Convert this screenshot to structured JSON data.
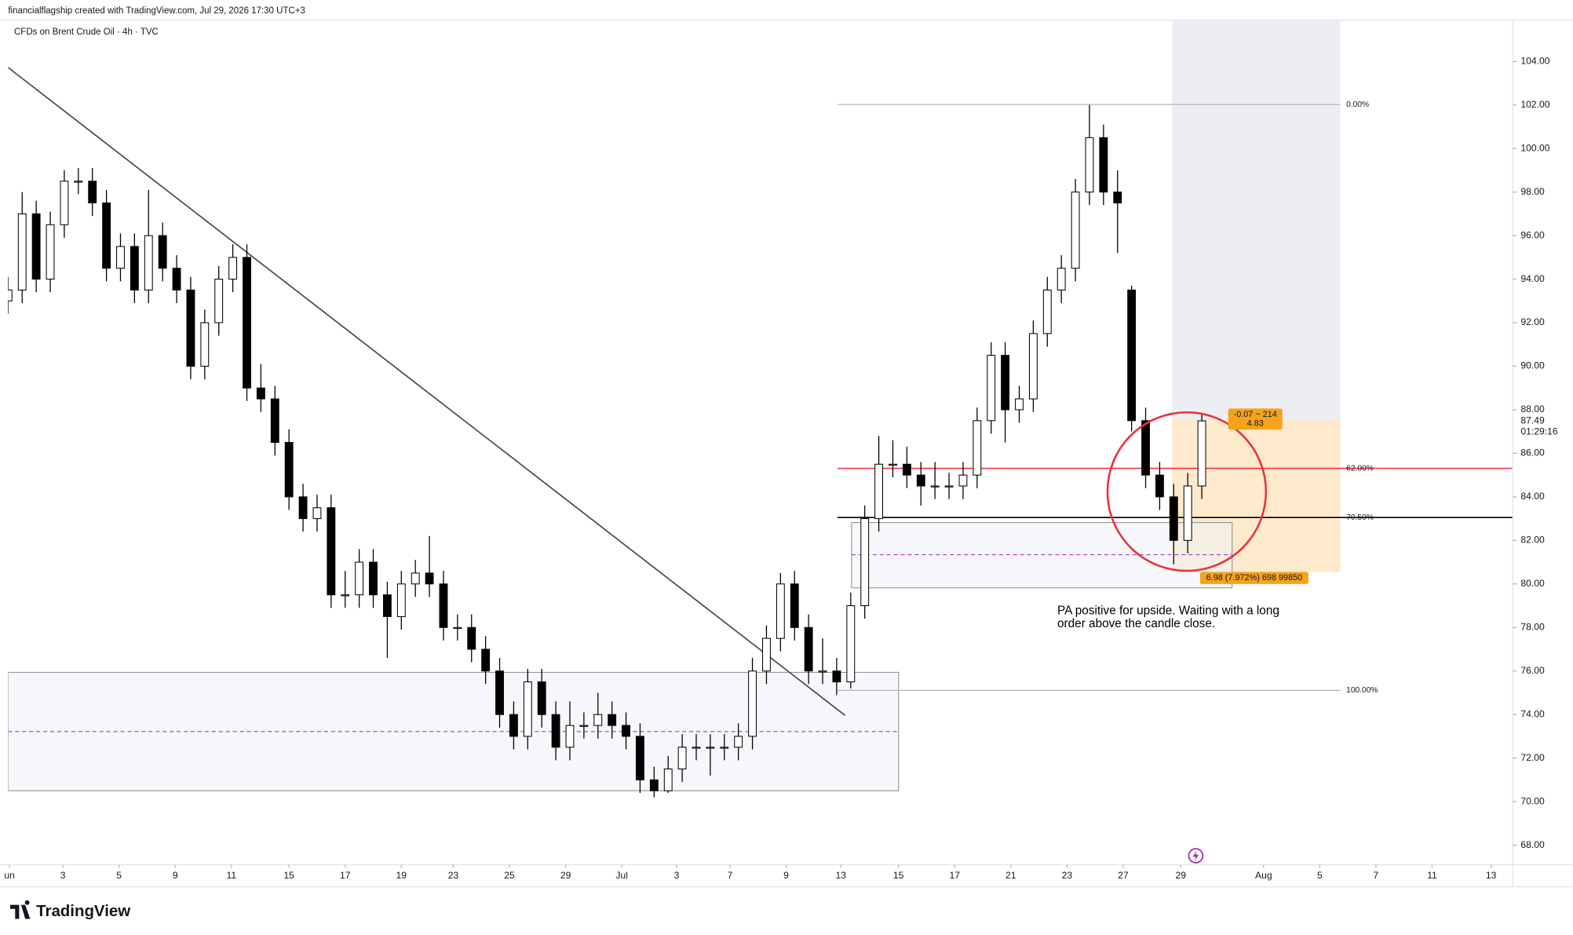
{
  "header": {
    "attribution": "financialflagship created with TradingView.com, Jul 29, 2026 17:30 UTC+3",
    "symbol": "CFDs on Brent Crude Oil · 4h · TVC",
    "brand": "TradingView"
  },
  "chart_data": {
    "type": "candlestick",
    "up_color": "#ffffff",
    "down_color": "#000000",
    "wick_color": "#000000",
    "candles": [
      [
        93,
        94.1,
        92.4,
        93.5
      ],
      [
        93.5,
        98,
        92.9,
        97
      ],
      [
        97,
        97.6,
        93.4,
        94
      ],
      [
        94,
        97.1,
        93.4,
        96.5
      ],
      [
        96.5,
        99,
        95.9,
        98.5
      ],
      [
        98.5,
        99.1,
        97.9,
        98.5
      ],
      [
        98.5,
        99.1,
        96.9,
        97.5
      ],
      [
        97.5,
        98.1,
        93.9,
        94.5
      ],
      [
        94.5,
        96.1,
        93.9,
        95.5
      ],
      [
        95.5,
        96.1,
        92.9,
        93.5
      ],
      [
        93.5,
        98.1,
        92.9,
        96
      ],
      [
        96,
        96.6,
        93.9,
        94.5
      ],
      [
        94.5,
        95.1,
        92.9,
        93.5
      ],
      [
        93.5,
        94.1,
        89.4,
        90
      ],
      [
        90,
        92.6,
        89.4,
        92
      ],
      [
        92,
        94.6,
        91.4,
        94
      ],
      [
        94,
        95.6,
        93.4,
        95
      ],
      [
        95,
        95.6,
        88.4,
        89
      ],
      [
        89,
        90.1,
        87.9,
        88.5
      ],
      [
        88.5,
        89.1,
        85.9,
        86.5
      ],
      [
        86.5,
        87.1,
        83.4,
        84
      ],
      [
        84,
        84.6,
        82.4,
        83
      ],
      [
        83,
        84.1,
        82.4,
        83.5
      ],
      [
        83.5,
        84.1,
        78.9,
        79.5
      ],
      [
        79.5,
        80.6,
        78.9,
        79.5
      ],
      [
        79.5,
        81.6,
        78.9,
        81
      ],
      [
        81,
        81.6,
        78.9,
        79.5
      ],
      [
        79.5,
        80.1,
        76.6,
        78.5
      ],
      [
        78.5,
        80.6,
        77.9,
        80
      ],
      [
        80,
        81.1,
        79.4,
        80.5
      ],
      [
        80.5,
        82.2,
        79.4,
        80
      ],
      [
        80,
        80.6,
        77.4,
        78
      ],
      [
        78,
        78.6,
        77.4,
        78
      ],
      [
        78,
        78.6,
        76.4,
        77
      ],
      [
        77,
        77.6,
        75.4,
        76
      ],
      [
        76,
        76.6,
        73.4,
        74
      ],
      [
        74,
        74.6,
        72.4,
        73
      ],
      [
        73,
        76.1,
        72.4,
        75.5
      ],
      [
        75.5,
        76.1,
        73.4,
        74
      ],
      [
        74,
        74.6,
        71.9,
        72.5
      ],
      [
        72.5,
        74.6,
        71.9,
        73.5
      ],
      [
        73.5,
        74.1,
        72.9,
        73.5
      ],
      [
        73.5,
        75,
        72.9,
        74
      ],
      [
        74,
        74.6,
        72.9,
        73.5
      ],
      [
        73.5,
        74.1,
        72.4,
        73
      ],
      [
        73,
        73.6,
        70.4,
        71
      ],
      [
        71,
        71.6,
        70.2,
        70.5
      ],
      [
        70.5,
        72.1,
        70.4,
        71.5
      ],
      [
        71.5,
        73.1,
        70.9,
        72.5
      ],
      [
        72.5,
        73.1,
        71.9,
        72.5
      ],
      [
        72.5,
        73.1,
        71.2,
        72.5
      ],
      [
        72.5,
        73.1,
        71.9,
        72.5
      ],
      [
        72.5,
        73.6,
        71.9,
        73
      ],
      [
        73,
        76.6,
        72.4,
        76
      ],
      [
        76,
        78.1,
        75.4,
        77.5
      ],
      [
        77.5,
        80.5,
        76.9,
        80
      ],
      [
        80,
        80.6,
        77.4,
        78
      ],
      [
        78,
        78.6,
        75.4,
        76
      ],
      [
        76,
        77.5,
        75.4,
        76
      ],
      [
        76,
        76.6,
        74.9,
        75.5
      ],
      [
        75.5,
        79.6,
        75.2,
        79
      ],
      [
        79,
        83.6,
        78.4,
        83
      ],
      [
        83,
        86.8,
        82.4,
        85.5
      ],
      [
        85.5,
        86.6,
        84.9,
        85.5
      ],
      [
        85.5,
        86.3,
        84.4,
        85
      ],
      [
        85,
        85.6,
        83.6,
        84.5
      ],
      [
        84.5,
        85.6,
        83.9,
        84.5
      ],
      [
        84.5,
        85.1,
        83.9,
        84.5
      ],
      [
        84.5,
        85.6,
        83.9,
        85
      ],
      [
        85,
        88.1,
        84.4,
        87.5
      ],
      [
        87.5,
        91.1,
        86.9,
        90.5
      ],
      [
        90.5,
        91.1,
        86.5,
        88
      ],
      [
        88,
        89.1,
        87.4,
        88.5
      ],
      [
        88.5,
        92.1,
        87.9,
        91.5
      ],
      [
        91.5,
        94.1,
        90.9,
        93.5
      ],
      [
        93.5,
        95.1,
        92.9,
        94.5
      ],
      [
        94.5,
        98.6,
        93.9,
        98
      ],
      [
        98,
        102,
        97.4,
        100.5
      ],
      [
        100.5,
        101.1,
        97.4,
        98
      ],
      [
        98,
        99,
        95.2,
        97.5
      ],
      [
        93.5,
        93.7,
        87,
        87.5
      ],
      [
        87.5,
        88.1,
        84.4,
        85
      ],
      [
        85,
        85.6,
        83.4,
        84
      ],
      [
        84,
        84.6,
        80.9,
        82
      ],
      [
        82,
        85.1,
        81.4,
        84.5
      ],
      [
        84.5,
        87.8,
        83.9,
        87.49
      ]
    ],
    "xlim": [
      0,
      107.14
    ],
    "ylim": [
      67.1,
      105.9
    ],
    "xticks": [
      {
        "value": 0.1,
        "label": "un"
      },
      {
        "value": 3.9,
        "label": "3"
      },
      {
        "value": 7.9,
        "label": "5"
      },
      {
        "value": 11.9,
        "label": "9"
      },
      {
        "value": 15.9,
        "label": "11"
      },
      {
        "value": 20,
        "label": "15"
      },
      {
        "value": 24,
        "label": "17"
      },
      {
        "value": 28,
        "label": "19"
      },
      {
        "value": 31.7,
        "label": "23"
      },
      {
        "value": 35.7,
        "label": "25"
      },
      {
        "value": 39.7,
        "label": "29"
      },
      {
        "value": 43.7,
        "label": "Jul"
      },
      {
        "value": 47.6,
        "label": "3"
      },
      {
        "value": 51.4,
        "label": "7"
      },
      {
        "value": 55.4,
        "label": "9"
      },
      {
        "value": 59.3,
        "label": "13"
      },
      {
        "value": 63.4,
        "label": "15"
      },
      {
        "value": 67.4,
        "label": "17"
      },
      {
        "value": 71.4,
        "label": "21"
      },
      {
        "value": 75.4,
        "label": "23"
      },
      {
        "value": 79.4,
        "label": "27"
      },
      {
        "value": 83.5,
        "label": "29"
      },
      {
        "value": 89.4,
        "label": "Aug"
      },
      {
        "value": 93.4,
        "label": "5"
      },
      {
        "value": 97.4,
        "label": "7"
      },
      {
        "value": 101.4,
        "label": "11"
      },
      {
        "value": 105.6,
        "label": "13"
      }
    ],
    "yticks": [
      {
        "value": 68,
        "label": "68.00"
      },
      {
        "value": 70,
        "label": "70.00"
      },
      {
        "value": 72,
        "label": "72.00"
      },
      {
        "value": 74,
        "label": "74.00"
      },
      {
        "value": 76,
        "label": "76.00"
      },
      {
        "value": 78,
        "label": "78.00"
      },
      {
        "value": 80,
        "label": "80.00"
      },
      {
        "value": 82,
        "label": "82.00"
      },
      {
        "value": 84,
        "label": "84.00"
      },
      {
        "value": 86,
        "label": "86.00"
      },
      {
        "value": 88,
        "label": "88.00"
      },
      {
        "value": 90,
        "label": "90.00"
      },
      {
        "value": 92,
        "label": "92.00"
      },
      {
        "value": 94,
        "label": "94.00"
      },
      {
        "value": 96,
        "label": "96.00"
      },
      {
        "value": 98,
        "label": "98.00"
      },
      {
        "value": 100,
        "label": "100.00"
      },
      {
        "value": 102,
        "label": "102.00"
      },
      {
        "value": 104,
        "label": "104.00"
      }
    ],
    "trendline": {
      "x": [
        0,
        59.6
      ],
      "y": [
        103.72,
        73.96
      ],
      "color": "#434651"
    },
    "zones": [
      {
        "x": [
          0,
          63.41
        ],
        "y": [
          70.5,
          75.94
        ],
        "mid": 73.22
      },
      {
        "x": [
          60.06,
          87.16
        ],
        "y": [
          79.82,
          82.82
        ],
        "mid": 81.34
      }
    ],
    "fib": {
      "x": [
        59.06,
        94.86
      ],
      "levels": [
        {
          "value": 102.02,
          "label": "0.00%",
          "color": "#b2b5be",
          "extend_right": false
        },
        {
          "value": 85.31,
          "label": "62.00%",
          "color": "#f23645",
          "extend_right": true
        },
        {
          "value": 83.05,
          "label": "70.50%",
          "color": "#000000",
          "extend_right": true
        },
        {
          "value": 75.11,
          "label": "100.00%",
          "color": "#b2b5be",
          "extend_right": false
        }
      ]
    },
    "position": {
      "x": [
        82.88,
        94.86
      ],
      "y": [
        80.55,
        87.55
      ],
      "profit_color": "#fde8c6",
      "upper_color": "#e9ebf1",
      "top_label": "-0.07 ~ 214",
      "top_value": "4.83",
      "bottom_label": "6.98 (7.972%) 698 99850"
    },
    "last_price": 87.49,
    "countdown": "01:29:16",
    "annotation": [
      "PA positive for upside. Waiting with a long",
      "order above the candle close."
    ]
  }
}
